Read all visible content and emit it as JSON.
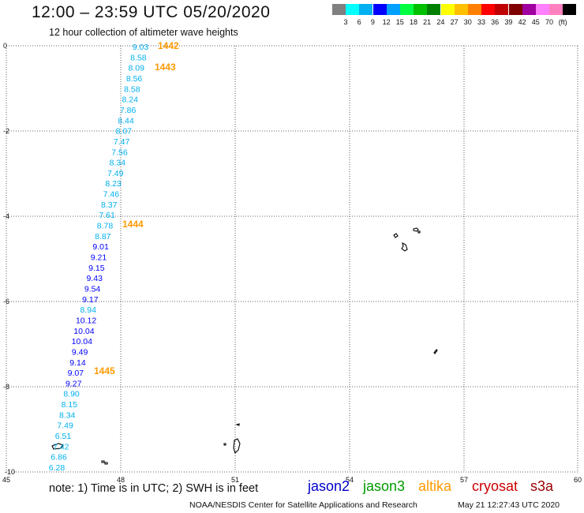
{
  "header": {
    "title": "12:00 – 23:59 UTC 05/20/2020",
    "subtitle": "12 hour collection of altimeter wave heights"
  },
  "colorbar": {
    "colors": [
      "#808080",
      "#00ffff",
      "#00b0f0",
      "#0000ff",
      "#00a0ff",
      "#00ff40",
      "#00c000",
      "#008000",
      "#ffff00",
      "#ffc000",
      "#ff8000",
      "#ff0000",
      "#c00000",
      "#800000",
      "#a000a0",
      "#ff80ff",
      "#ff80c0",
      "#000000"
    ],
    "ticks": [
      "3",
      "6",
      "9",
      "12",
      "15",
      "18",
      "21",
      "24",
      "27",
      "30",
      "33",
      "36",
      "39",
      "42",
      "45",
      "70",
      "(ft)"
    ]
  },
  "map": {
    "x_ticks": [
      "45",
      "48",
      "51",
      "54",
      "57",
      "60"
    ],
    "y_ticks": [
      "0",
      "-2",
      "-4",
      "-6",
      "-8",
      "-10"
    ],
    "xlim": [
      45,
      60
    ],
    "ylim": [
      -10,
      0
    ]
  },
  "swh_values": [
    {
      "text": "9.03",
      "color": "#00b0f0"
    },
    {
      "text": "8.58",
      "color": "#00b0f0"
    },
    {
      "text": "8.09",
      "color": "#00b0f0"
    },
    {
      "text": "8.56",
      "color": "#00b0f0"
    },
    {
      "text": "8.58",
      "color": "#00b0f0"
    },
    {
      "text": "8.24",
      "color": "#00b0f0"
    },
    {
      "text": "7.86",
      "color": "#00b0f0"
    },
    {
      "text": "8.44",
      "color": "#00b0f0"
    },
    {
      "text": "8.07",
      "color": "#00b0f0"
    },
    {
      "text": "7.47",
      "color": "#00b0f0"
    },
    {
      "text": "7.56",
      "color": "#00b0f0"
    },
    {
      "text": "8.34",
      "color": "#00b0f0"
    },
    {
      "text": "7.49",
      "color": "#00b0f0"
    },
    {
      "text": "8.23",
      "color": "#00b0f0"
    },
    {
      "text": "7.46",
      "color": "#00b0f0"
    },
    {
      "text": "8.37",
      "color": "#00b0f0"
    },
    {
      "text": "7.61",
      "color": "#00b0f0"
    },
    {
      "text": "8.78",
      "color": "#00b0f0"
    },
    {
      "text": "8.87",
      "color": "#00b0f0"
    },
    {
      "text": "9.01",
      "color": "#0000ff"
    },
    {
      "text": "9.21",
      "color": "#0000ff"
    },
    {
      "text": "9.15",
      "color": "#0000ff"
    },
    {
      "text": "9.43",
      "color": "#0000ff"
    },
    {
      "text": "9.54",
      "color": "#0000ff"
    },
    {
      "text": "9.17",
      "color": "#0000ff"
    },
    {
      "text": "8.94",
      "color": "#00b0f0"
    },
    {
      "text": "10.12",
      "color": "#0000ff"
    },
    {
      "text": "10.04",
      "color": "#0000ff"
    },
    {
      "text": "10.04",
      "color": "#0000ff"
    },
    {
      "text": "9.49",
      "color": "#0000ff"
    },
    {
      "text": "9.14",
      "color": "#0000ff"
    },
    {
      "text": "9.07",
      "color": "#0000ff"
    },
    {
      "text": "9.27",
      "color": "#0000ff"
    },
    {
      "text": "8.90",
      "color": "#00b0f0"
    },
    {
      "text": "8.15",
      "color": "#00b0f0"
    },
    {
      "text": "8.34",
      "color": "#00b0f0"
    },
    {
      "text": "7.49",
      "color": "#00b0f0"
    },
    {
      "text": "6.51",
      "color": "#00b0f0"
    },
    {
      "text": "7.42",
      "color": "#00b0f0"
    },
    {
      "text": "6.86",
      "color": "#00b0f0"
    },
    {
      "text": "6.28",
      "color": "#00b0f0"
    }
  ],
  "pass_times": [
    {
      "text": "1442",
      "color": "#ff9900"
    },
    {
      "text": "1443",
      "color": "#ff9900"
    },
    {
      "text": "1444",
      "color": "#ff9900"
    },
    {
      "text": "1445",
      "color": "#ff9900"
    }
  ],
  "footer": {
    "note": "note:  1) Time is in UTC;  2) SWH is in feet",
    "satellites": [
      {
        "name": "jason2",
        "color": "#0000cc"
      },
      {
        "name": "jason3",
        "color": "#009900"
      },
      {
        "name": "altika",
        "color": "#ff9900"
      },
      {
        "name": "cryosat",
        "color": "#cc0000"
      },
      {
        "name": "s3a",
        "color": "#990000"
      }
    ],
    "credit": "NOAA/NESDIS Center for Satellite Applications and Research",
    "timestamp": "May 21 12:27:43 UTC 2020"
  }
}
